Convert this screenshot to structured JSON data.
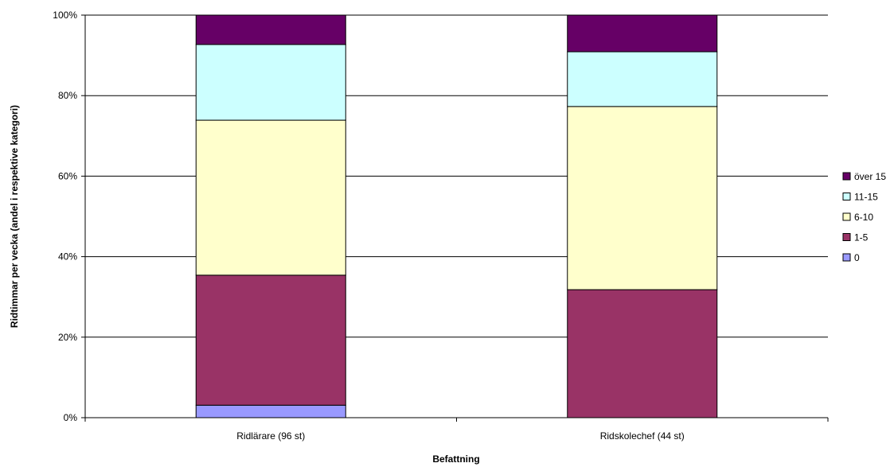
{
  "chart_data": {
    "type": "bar",
    "stacked": true,
    "percent_stacked": true,
    "categories": [
      "Ridlärare (96 st)",
      "Ridskolechef (44 st)"
    ],
    "series": [
      {
        "name": "0",
        "values": [
          3.1,
          0.0
        ],
        "color": "#9999ff"
      },
      {
        "name": "1-5",
        "values": [
          32.3,
          31.8
        ],
        "color": "#993366"
      },
      {
        "name": "6-10",
        "values": [
          38.5,
          45.5
        ],
        "color": "#ffffcc"
      },
      {
        "name": "11-15",
        "values": [
          18.8,
          13.6
        ],
        "color": "#ccffff"
      },
      {
        "name": "över 15",
        "values": [
          7.3,
          9.1
        ],
        "color": "#660066"
      }
    ],
    "xlabel": "Befattning",
    "ylabel": "Ridtimmar per vecka (andel i respektive kategori)",
    "ylim": [
      0,
      100
    ],
    "yticks": [
      "0%",
      "20%",
      "40%",
      "60%",
      "80%",
      "100%"
    ],
    "grid": true,
    "legend_position": "right"
  }
}
